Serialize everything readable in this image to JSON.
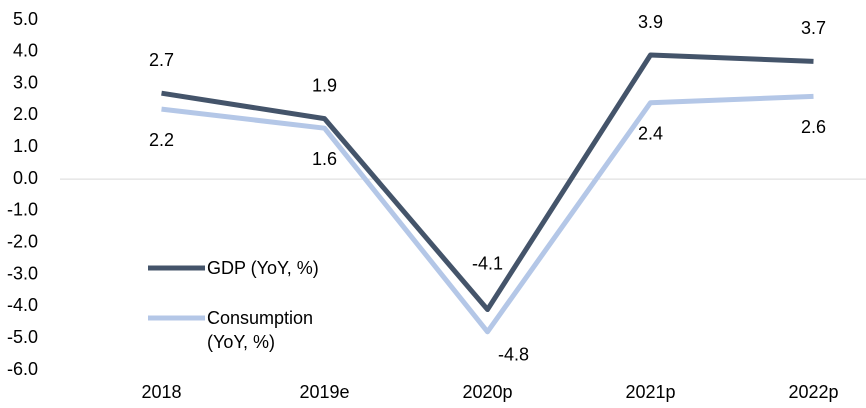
{
  "chart_data": {
    "type": "line",
    "categories": [
      "2018",
      "2019e",
      "2020p",
      "2021p",
      "2022p"
    ],
    "series": [
      {
        "name": "GDP (YoY, %)",
        "color": "#44546a",
        "values": [
          2.7,
          1.9,
          -4.1,
          3.9,
          3.7
        ]
      },
      {
        "name": "Consumption (YoY, %)",
        "color": "#b4c7e7",
        "values": [
          2.2,
          1.6,
          -4.8,
          2.4,
          2.6
        ]
      }
    ],
    "ylim": [
      -6,
      5
    ],
    "yticks": [
      {
        "value": 5,
        "label": "5.0"
      },
      {
        "value": 4,
        "label": "4.0"
      },
      {
        "value": 3,
        "label": "3.0"
      },
      {
        "value": 2,
        "label": "2.0"
      },
      {
        "value": 1,
        "label": "1.0"
      },
      {
        "value": 0,
        "label": "0.0"
      },
      {
        "value": -1,
        "label": "-1.0"
      },
      {
        "value": -2,
        "label": "-2.0"
      },
      {
        "value": -3,
        "label": "-3.0"
      },
      {
        "value": -4,
        "label": "-4.0"
      },
      {
        "value": -5,
        "label": "-5.0"
      },
      {
        "value": -6,
        "label": "-6.0"
      }
    ],
    "grid": false
  }
}
